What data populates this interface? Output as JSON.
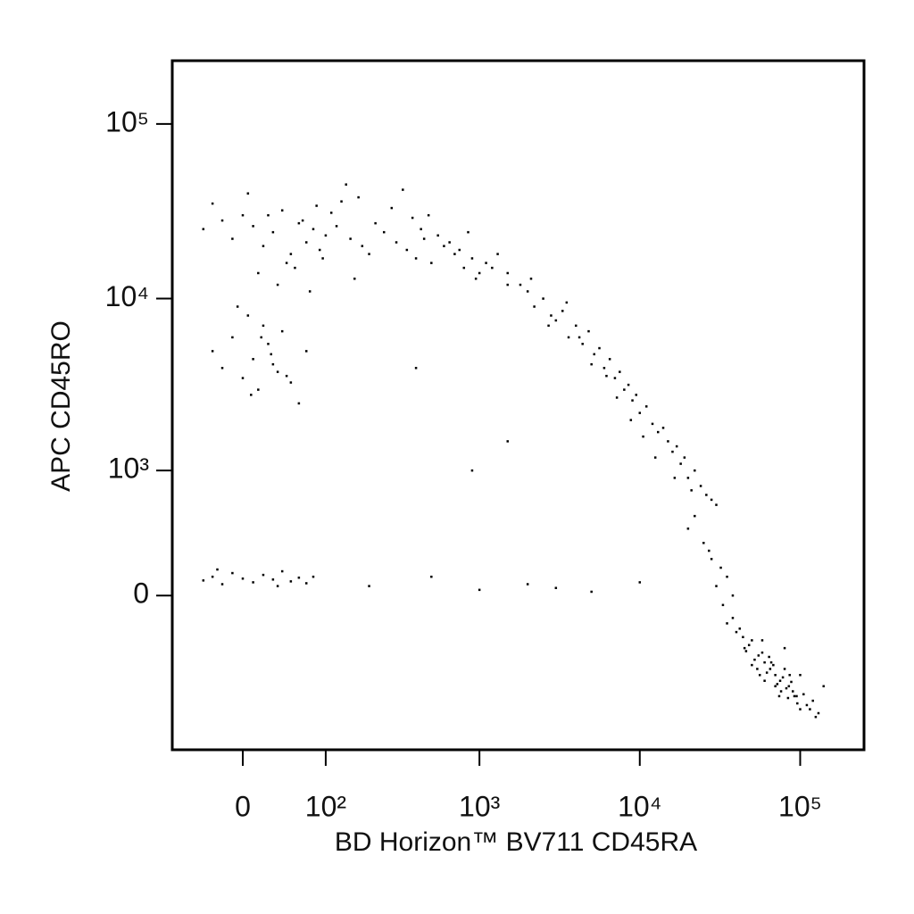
{
  "chart_data": {
    "type": "scatter",
    "xlabel": "BD Horizon™ BV711 CD45RA",
    "ylabel": "APC CD45RO",
    "xscale": "biexponential",
    "yscale": "biexponential",
    "xlim": [
      -80,
      250000
    ],
    "ylim": [
      -1500,
      230000
    ],
    "xticks": [
      0,
      {
        "value": 100,
        "label": "10²"
      },
      {
        "value": 1000,
        "label": "10³"
      },
      {
        "value": 10000,
        "label": "10⁴"
      },
      {
        "value": 100000,
        "label": "10⁵"
      }
    ],
    "yticks": [
      0,
      {
        "value": 1000,
        "label": "10³"
      },
      {
        "value": 10000,
        "label": "10⁴"
      },
      {
        "value": 100000,
        "label": "10⁵"
      }
    ],
    "color": "#000000",
    "x": [
      -40,
      -20,
      -10,
      0,
      10,
      20,
      30,
      40,
      50,
      60,
      70,
      80,
      90,
      100,
      120,
      150,
      180,
      200,
      250,
      300,
      350,
      400,
      450,
      500,
      600,
      700,
      800,
      900,
      1000,
      1200,
      -30,
      5,
      25,
      45,
      65,
      85,
      110,
      140,
      170,
      220,
      280,
      330,
      380,
      430,
      480,
      550,
      650,
      750,
      850,
      950,
      1100,
      1300,
      1500,
      15,
      35,
      55,
      75,
      95,
      130,
      160,
      -30,
      -20,
      -10,
      0,
      5,
      10,
      15,
      20,
      25,
      30,
      35,
      40,
      50,
      60,
      70,
      -5,
      8,
      18,
      28,
      45,
      1500,
      1800,
      2000,
      2200,
      2500,
      2800,
      3000,
      3300,
      3600,
      4000,
      4400,
      4800,
      5200,
      5600,
      6000,
      6500,
      7000,
      7500,
      8000,
      8500,
      9000,
      9500,
      10000,
      11000,
      12000,
      13000,
      14000,
      15000,
      16000,
      17000,
      18000,
      19000,
      20000,
      22000,
      24000,
      26000,
      28000,
      30000,
      2100,
      2700,
      3500,
      4200,
      5000,
      6200,
      7200,
      8800,
      10500,
      12500,
      16500,
      21000,
      20000,
      25000,
      28000,
      32000,
      35000,
      22000,
      27000,
      30000,
      38000,
      33000,
      35000,
      40000,
      45000,
      50000,
      55000,
      60000,
      65000,
      70000,
      75000,
      80000,
      85000,
      90000,
      95000,
      100000,
      110000,
      120000,
      130000,
      42000,
      48000,
      52000,
      58000,
      62000,
      68000,
      72000,
      78000,
      82000,
      88000,
      92000,
      105000,
      115000,
      38000,
      44000,
      50000,
      56000,
      64000,
      70000,
      76000,
      84000,
      96000,
      125000,
      46000,
      54000,
      60000,
      66000,
      74000,
      80000,
      86000,
      100000,
      140000,
      58000,
      -40,
      -30,
      -20,
      -10,
      0,
      10,
      20,
      30,
      40,
      50,
      60,
      70,
      80,
      -25,
      35,
      200,
      500,
      1000,
      2000,
      3000,
      5000,
      10000,
      400,
      900,
      1500
    ],
    "values": [
      25000,
      28000,
      22000,
      30000,
      26000,
      20000,
      24000,
      32000,
      18000,
      27000,
      21000,
      25000,
      19000,
      23000,
      26000,
      22000,
      20000,
      18000,
      24000,
      21000,
      19000,
      17000,
      22000,
      16000,
      20000,
      18000,
      15000,
      17000,
      14000,
      15000,
      35000,
      40000,
      30000,
      16000,
      28000,
      34000,
      31000,
      45000,
      38000,
      27000,
      33000,
      42000,
      29000,
      25000,
      30000,
      23000,
      21000,
      19000,
      24000,
      13000,
      16000,
      18000,
      12000,
      14000,
      12000,
      15000,
      11000,
      17000,
      36000,
      13000,
      5000,
      4000,
      6000,
      3500,
      8000,
      4500,
      3000,
      7000,
      5500,
      4200,
      3800,
      6500,
      3300,
      2500,
      5000,
      9000,
      2800,
      6000,
      4800,
      3600,
      14000,
      12000,
      11000,
      9000,
      10000,
      8000,
      7500,
      8500,
      6000,
      7000,
      5500,
      6500,
      4800,
      5200,
      4000,
      4500,
      3500,
      3800,
      3000,
      3200,
      2600,
      2800,
      2200,
      2400,
      1900,
      1700,
      1800,
      1500,
      1300,
      1400,
      1100,
      1200,
      900,
      1000,
      800,
      700,
      650,
      600,
      13000,
      7000,
      9500,
      6000,
      4200,
      3600,
      2700,
      2000,
      1600,
      1200,
      900,
      750,
      400,
      300,
      200,
      150,
      100,
      500,
      250,
      50,
      0,
      -50,
      -150,
      -200,
      -300,
      -250,
      -350,
      -400,
      -450,
      -500,
      -550,
      -450,
      -600,
      -650,
      -700,
      -500,
      -800,
      -750,
      -900,
      -180,
      -280,
      -380,
      -330,
      -480,
      -420,
      -580,
      -520,
      -620,
      -560,
      -700,
      -680,
      -850,
      -120,
      -230,
      -420,
      -500,
      -360,
      -600,
      -650,
      -720,
      -780,
      -950,
      -320,
      -450,
      -550,
      -400,
      -700,
      -300,
      -500,
      -850,
      -600,
      -250,
      80,
      100,
      60,
      120,
      90,
      70,
      110,
      85,
      130,
      75,
      95,
      65,
      100,
      140,
      50,
      50,
      100,
      30,
      60,
      40,
      20,
      70,
      4000,
      1000,
      1500
    ]
  }
}
